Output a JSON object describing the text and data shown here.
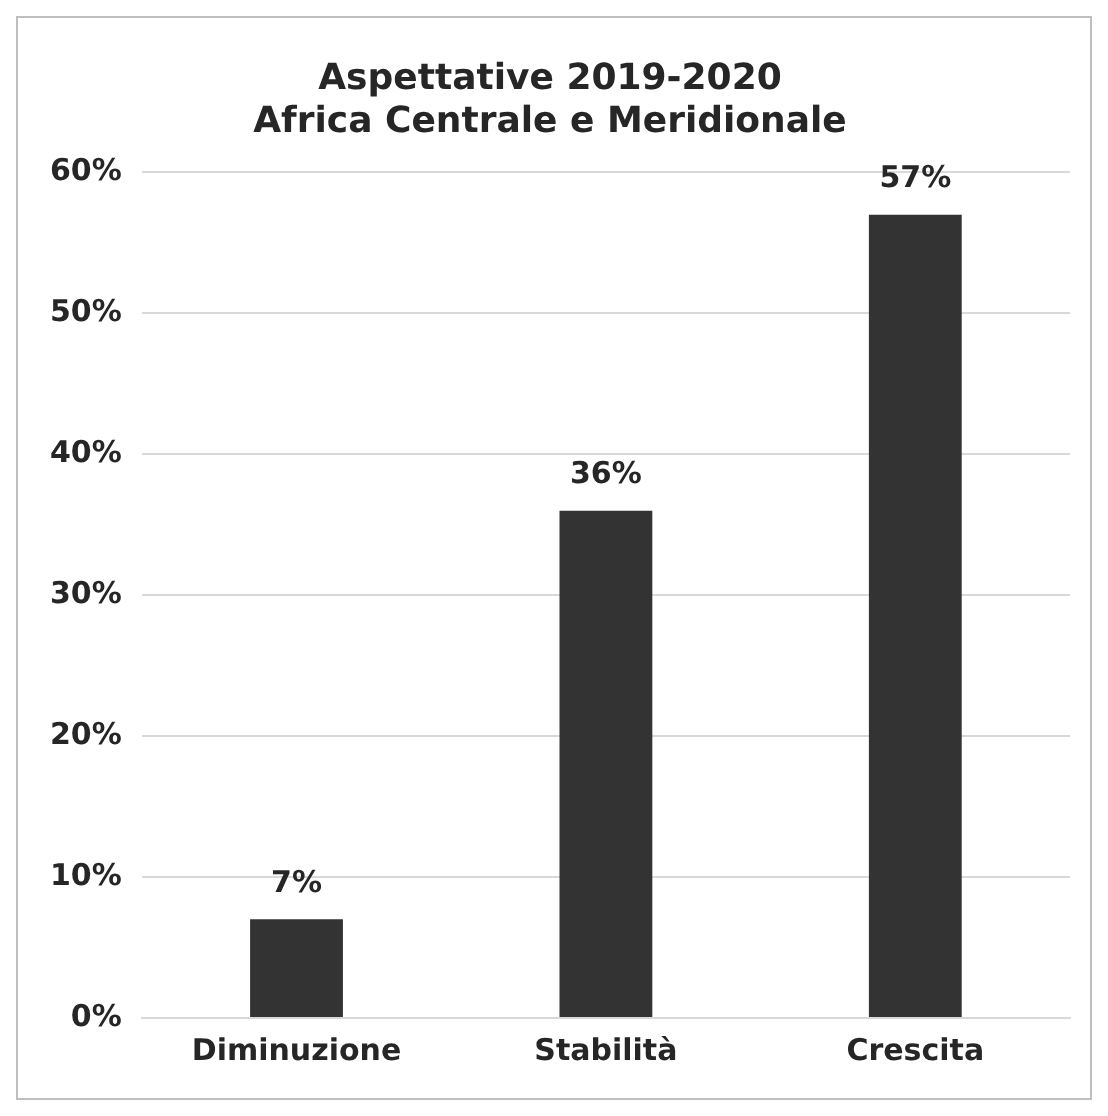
{
  "chart_data": {
    "type": "bar",
    "title": "Aspettative 2019-2020\nAfrica Centrale e Meridionale",
    "categories": [
      "Diminuzione",
      "Stabilità",
      "Crescita"
    ],
    "values": [
      7,
      36,
      57
    ],
    "color": "#333333",
    "value_labels": [
      "7%",
      "36%",
      "57%"
    ],
    "ylim": [
      0,
      60
    ],
    "yticks": [
      {
        "value": 0,
        "label": "0%"
      },
      {
        "value": 10,
        "label": "10%"
      },
      {
        "value": 20,
        "label": "20%"
      },
      {
        "value": 30,
        "label": "30%"
      },
      {
        "value": 40,
        "label": "40%"
      },
      {
        "value": 50,
        "label": "50%"
      },
      {
        "value": 60,
        "label": "60%"
      }
    ],
    "grid": "y",
    "legend": false
  }
}
